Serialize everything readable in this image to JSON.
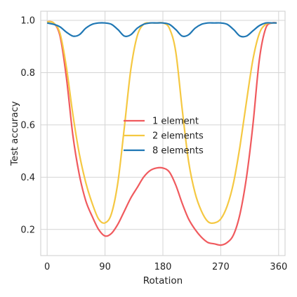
{
  "chart_data": {
    "type": "line",
    "title": "",
    "xlabel": "Rotation",
    "ylabel": "Test accuracy",
    "xlim": [
      -10,
      370
    ],
    "ylim": [
      0.1,
      1.035
    ],
    "xticks": [
      0,
      90,
      180,
      270,
      360
    ],
    "yticks": [
      0.2,
      0.4,
      0.6,
      0.8,
      1.0
    ],
    "ytick_labels": [
      "0.2",
      "0.4",
      "0.6",
      "0.8",
      "1.0"
    ],
    "grid": true,
    "legend_position": "center",
    "series": [
      {
        "name": "1 element",
        "color": "#f05a5e",
        "x": [
          0,
          10,
          20,
          30,
          40,
          50,
          60,
          70,
          80,
          90,
          100,
          110,
          120,
          130,
          140,
          150,
          160,
          170,
          180,
          190,
          200,
          210,
          220,
          230,
          240,
          250,
          260,
          270,
          280,
          290,
          300,
          310,
          320,
          330,
          340,
          350,
          357
        ],
        "y": [
          0.995,
          0.99,
          0.94,
          0.78,
          0.56,
          0.41,
          0.31,
          0.25,
          0.2,
          0.175,
          0.185,
          0.22,
          0.27,
          0.32,
          0.36,
          0.4,
          0.425,
          0.435,
          0.435,
          0.42,
          0.37,
          0.3,
          0.24,
          0.2,
          0.17,
          0.15,
          0.145,
          0.14,
          0.15,
          0.18,
          0.26,
          0.4,
          0.6,
          0.85,
          0.97,
          0.99,
          0.99
        ]
      },
      {
        "name": "2 elements",
        "color": "#f5c842",
        "x": [
          0,
          10,
          20,
          30,
          40,
          50,
          60,
          70,
          80,
          90,
          100,
          110,
          120,
          130,
          140,
          150,
          160,
          170,
          180,
          190,
          200,
          210,
          220,
          230,
          240,
          250,
          260,
          270,
          280,
          290,
          300,
          310,
          320,
          330,
          340,
          350,
          357
        ],
        "y": [
          0.995,
          0.99,
          0.95,
          0.82,
          0.64,
          0.49,
          0.38,
          0.3,
          0.24,
          0.225,
          0.26,
          0.38,
          0.59,
          0.81,
          0.94,
          0.985,
          0.99,
          0.99,
          0.99,
          0.97,
          0.88,
          0.66,
          0.46,
          0.34,
          0.27,
          0.23,
          0.225,
          0.24,
          0.29,
          0.38,
          0.52,
          0.69,
          0.85,
          0.95,
          0.985,
          0.99,
          0.99
        ]
      },
      {
        "name": "8 elements",
        "color": "#1f77b4",
        "x": [
          0,
          10,
          20,
          30,
          40,
          50,
          60,
          70,
          80,
          90,
          100,
          110,
          120,
          130,
          140,
          150,
          160,
          170,
          180,
          190,
          200,
          210,
          220,
          230,
          240,
          250,
          260,
          270,
          280,
          290,
          300,
          310,
          320,
          330,
          340,
          350,
          357
        ],
        "y": [
          0.99,
          0.985,
          0.975,
          0.955,
          0.94,
          0.945,
          0.97,
          0.985,
          0.99,
          0.99,
          0.985,
          0.965,
          0.94,
          0.945,
          0.97,
          0.985,
          0.99,
          0.99,
          0.99,
          0.985,
          0.965,
          0.94,
          0.945,
          0.97,
          0.985,
          0.99,
          0.99,
          0.99,
          0.985,
          0.965,
          0.94,
          0.94,
          0.96,
          0.98,
          0.99,
          0.99,
          0.99
        ]
      }
    ]
  }
}
